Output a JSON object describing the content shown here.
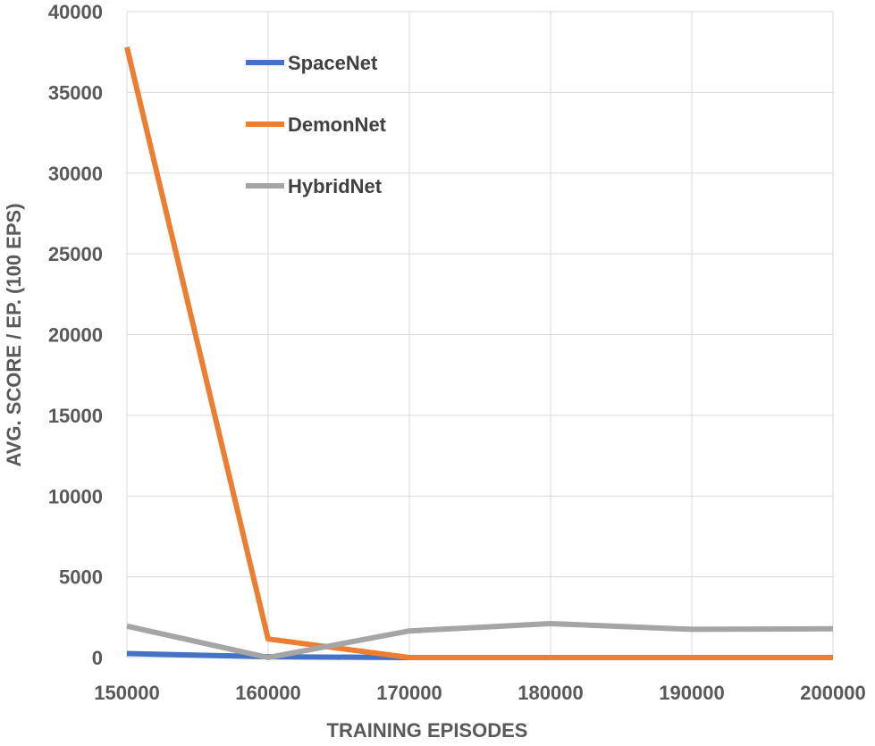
{
  "chart_data": {
    "type": "line",
    "title": "",
    "xlabel": "TRAINING EPISODES",
    "ylabel": "AVG. SCORE / EP. (100 EPS)",
    "x": [
      150000,
      160000,
      170000,
      180000,
      190000,
      200000
    ],
    "xlim": [
      150000,
      200000
    ],
    "ylim": [
      0,
      40000
    ],
    "x_ticks": [
      "150000",
      "160000",
      "170000",
      "180000",
      "190000",
      "200000"
    ],
    "y_ticks": [
      "0",
      "5000",
      "10000",
      "15000",
      "20000",
      "25000",
      "30000",
      "35000",
      "40000"
    ],
    "grid": "vertical and horizontal, light gray",
    "legend": "top-left",
    "series": [
      {
        "name": "SpaceNet",
        "color": "#4472C4",
        "values": [
          250,
          50,
          0,
          0,
          0,
          0
        ]
      },
      {
        "name": "DemonNet",
        "color": "#ED7D31",
        "values": [
          37800,
          1150,
          0,
          0,
          0,
          0
        ]
      },
      {
        "name": "HybridNet",
        "color": "#A5A5A5",
        "values": [
          1950,
          0,
          1650,
          2100,
          1750,
          1780
        ]
      }
    ]
  }
}
